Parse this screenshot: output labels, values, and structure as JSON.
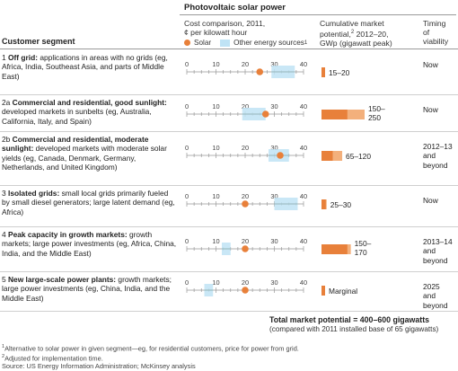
{
  "header": {
    "pv_title": "Photovoltaic solar power",
    "customer_segment": "Customer segment",
    "cost_title_1": "Cost comparison, 2011,",
    "cost_title_2": "¢ per kilowatt hour",
    "legend_solar": "Solar",
    "legend_other": "Other energy sources",
    "legend_other_sup": "1",
    "market_title_1": "Cumulative market",
    "market_title_2": "potential,",
    "market_title_2_sup": "2",
    "market_title_2b": " 2012–20,",
    "market_title_3": "GWp (gigawatt peak)",
    "timing_title_1": "Timing",
    "timing_title_2": "of",
    "timing_title_3": "viability"
  },
  "colors": {
    "solar": "#e8803a",
    "other": "#bfe3f5",
    "bar_low": "#e8803a",
    "bar_high": "#f3b07c"
  },
  "rows": [
    {
      "num": "1",
      "title": "Off grid:",
      "desc": " applications in areas with no grids (eg, Africa, India, Southeast Asia, and parts of Middle East)",
      "market_label": "15–20",
      "timing": "Now"
    },
    {
      "num": "2a",
      "title": "Commercial and residential, good sunlight:",
      "desc": " developed markets in sunbelts (eg, Australia, California, Italy, and Spain)",
      "market_label": "150–\n250",
      "timing": "Now"
    },
    {
      "num": "2b",
      "title": "Commercial and residential, moderate sunlight:",
      "desc": " developed markets with moderate solar yields (eg, Canada, Denmark, Germany, Netherlands, and United Kingdom)",
      "market_label": "65–120",
      "timing": "2012–13\nand\nbeyond"
    },
    {
      "num": "3",
      "title": "Isolated grids:",
      "desc": " small local grids primarily fueled by small diesel generators; large latent demand (eg, Africa)",
      "market_label": "25–30",
      "timing": "Now"
    },
    {
      "num": "4",
      "title": "Peak capacity in growth markets:",
      "desc": " growth markets; large power investments (eg, Africa, China, India, and the Middle East)",
      "market_label": "150–\n170",
      "timing": "2013–14\nand\nbeyond"
    },
    {
      "num": "5",
      "title": "New large-scale power plants:",
      "desc": " growth markets; large power investments (eg, China, India, and the Middle East)",
      "market_label": "Marginal",
      "timing": "2025\nand\nbeyond"
    }
  ],
  "total": {
    "main": "Total market potential = 400–600 gigawatts",
    "sub": "(compared with 2011 installed base of 65 gigawatts)"
  },
  "footnotes": [
    {
      "sup": "1",
      "text": "Alternative to solar power in given segment—eg, for residential customers, price for power from grid."
    },
    {
      "sup": "2",
      "text": "Adjusted for implementation time."
    },
    {
      "sup": "",
      "text": "Source: US Energy Information Administration; McKinsey analysis"
    }
  ],
  "chart_data": [
    {
      "type": "scatter",
      "title": "Cost comparison, 2011, ¢ per kilowatt hour",
      "xlim": [
        0,
        40
      ],
      "ticks": [
        "0",
        "10",
        "20",
        "30",
        "40"
      ],
      "series": [
        {
          "name": "Solar",
          "values": [
            25,
            27,
            32,
            20,
            20,
            20
          ]
        },
        {
          "name": "Other energy sources",
          "ranges": [
            [
              29,
              37
            ],
            [
              19,
              27
            ],
            [
              28,
              35
            ],
            [
              30,
              38
            ],
            [
              12,
              15
            ],
            [
              6,
              9
            ]
          ]
        }
      ],
      "categories": [
        "1",
        "2a",
        "2b",
        "3",
        "4",
        "5"
      ]
    },
    {
      "type": "bar",
      "title": "Cumulative market potential, 2012–20, GWp (gigawatt peak)",
      "categories": [
        "1",
        "2a",
        "2b",
        "3",
        "4",
        "5"
      ],
      "series": [
        {
          "name": "low",
          "values": [
            15,
            150,
            65,
            25,
            150,
            5
          ]
        },
        {
          "name": "high",
          "values": [
            20,
            250,
            120,
            30,
            170,
            5
          ]
        }
      ],
      "labels": [
        "15–20",
        "150–250",
        "65–120",
        "25–30",
        "150–170",
        "Marginal"
      ]
    }
  ]
}
